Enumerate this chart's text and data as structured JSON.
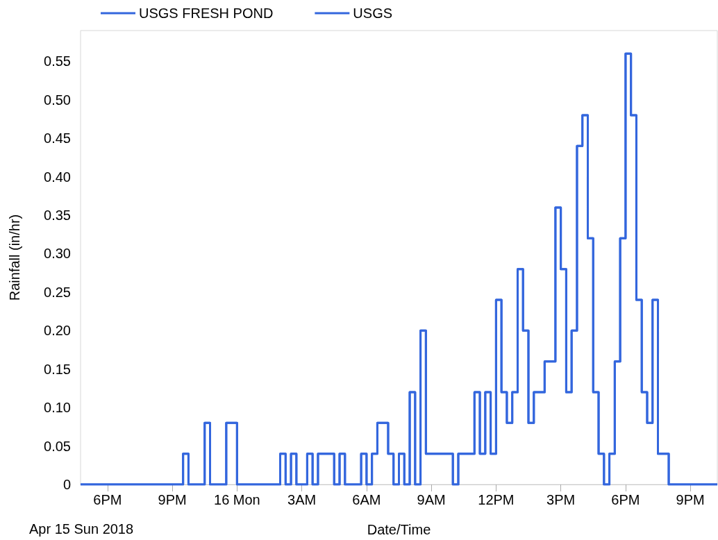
{
  "chart_data": {
    "type": "step",
    "xlabel": "Date/Time",
    "ylabel": "Rainfall (in/hr)",
    "annotations": [
      "Apr 15 Sun 2018"
    ],
    "x": [
      "2018-04-15T16:45",
      "2018-04-15T21:30",
      "2018-04-15T21:45",
      "2018-04-15T22:30",
      "2018-04-15T22:45",
      "2018-04-15T23:30",
      "2018-04-16T00:00",
      "2018-04-16T02:00",
      "2018-04-16T02:15",
      "2018-04-16T02:30",
      "2018-04-16T02:45",
      "2018-04-16T03:15",
      "2018-04-16T03:30",
      "2018-04-16T03:45",
      "2018-04-16T04:30",
      "2018-04-16T04:45",
      "2018-04-16T05:00",
      "2018-04-16T05:45",
      "2018-04-16T06:00",
      "2018-04-16T06:15",
      "2018-04-16T06:30",
      "2018-04-16T07:00",
      "2018-04-16T07:15",
      "2018-04-16T07:30",
      "2018-04-16T07:45",
      "2018-04-16T08:00",
      "2018-04-16T08:15",
      "2018-04-16T08:30",
      "2018-04-16T08:45",
      "2018-04-16T10:00",
      "2018-04-16T10:15",
      "2018-04-16T11:00",
      "2018-04-16T11:15",
      "2018-04-16T11:30",
      "2018-04-16T11:45",
      "2018-04-16T12:00",
      "2018-04-16T12:15",
      "2018-04-16T12:30",
      "2018-04-16T12:45",
      "2018-04-16T13:00",
      "2018-04-16T13:15",
      "2018-04-16T13:30",
      "2018-04-16T13:45",
      "2018-04-16T14:15",
      "2018-04-16T14:45",
      "2018-04-16T15:00",
      "2018-04-16T15:15",
      "2018-04-16T15:30",
      "2018-04-16T15:45",
      "2018-04-16T16:00",
      "2018-04-16T16:15",
      "2018-04-16T16:30",
      "2018-04-16T16:45",
      "2018-04-16T17:00",
      "2018-04-16T17:15",
      "2018-04-16T17:30",
      "2018-04-16T17:45",
      "2018-04-16T18:00",
      "2018-04-16T18:15",
      "2018-04-16T18:30",
      "2018-04-16T18:45",
      "2018-04-16T19:00",
      "2018-04-16T19:15",
      "2018-04-16T19:30",
      "2018-04-16T20:00",
      "2018-04-16T22:15"
    ],
    "series": [
      {
        "name": "USGS FRESH POND",
        "color": "#3366dd",
        "values": [
          0,
          0.04,
          0,
          0.08,
          0,
          0.08,
          0,
          0.04,
          0,
          0.04,
          0,
          0.04,
          0,
          0.04,
          0,
          0.04,
          0,
          0.04,
          0,
          0.04,
          0.08,
          0.04,
          0,
          0.04,
          0,
          0.12,
          0,
          0.2,
          0.04,
          0,
          0.04,
          0.12,
          0.04,
          0.12,
          0.04,
          0.24,
          0.12,
          0.08,
          0.12,
          0.28,
          0.2,
          0.08,
          0.12,
          0.16,
          0.36,
          0.28,
          0.12,
          0.2,
          0.44,
          0.48,
          0.32,
          0.12,
          0.04,
          0,
          0.04,
          0.16,
          0.32,
          0.56,
          0.48,
          0.24,
          0.12,
          0.08,
          0.24,
          0.04,
          0,
          0
        ]
      },
      {
        "name": "USGS",
        "color": "#3366dd",
        "values": [
          0,
          0.04,
          0,
          0.08,
          0,
          0.08,
          0,
          0.04,
          0,
          0.04,
          0,
          0.04,
          0,
          0.04,
          0,
          0.04,
          0,
          0.04,
          0,
          0.04,
          0.08,
          0.04,
          0,
          0.04,
          0,
          0.12,
          0,
          0.2,
          0.04,
          0,
          0.04,
          0.12,
          0.04,
          0.12,
          0.04,
          0.24,
          0.12,
          0.08,
          0.12,
          0.28,
          0.2,
          0.08,
          0.12,
          0.16,
          0.36,
          0.28,
          0.12,
          0.2,
          0.44,
          0.48,
          0.32,
          0.12,
          0.04,
          0,
          0.04,
          0.16,
          0.32,
          0.56,
          0.48,
          0.24,
          0.12,
          0.08,
          0.24,
          0.04,
          0,
          0
        ]
      }
    ],
    "xlim": [
      "2018-04-15T16:45",
      "2018-04-16T22:15"
    ],
    "xticks": [
      {
        "value": "2018-04-15T18:00",
        "label": "6PM"
      },
      {
        "value": "2018-04-15T21:00",
        "label": "9PM"
      },
      {
        "value": "2018-04-16T00:00",
        "label": "16 Mon"
      },
      {
        "value": "2018-04-16T03:00",
        "label": "3AM"
      },
      {
        "value": "2018-04-16T06:00",
        "label": "6AM"
      },
      {
        "value": "2018-04-16T09:00",
        "label": "9AM"
      },
      {
        "value": "2018-04-16T12:00",
        "label": "12PM"
      },
      {
        "value": "2018-04-16T15:00",
        "label": "3PM"
      },
      {
        "value": "2018-04-16T18:00",
        "label": "6PM"
      },
      {
        "value": "2018-04-16T21:00",
        "label": "9PM"
      }
    ],
    "ylim": [
      0,
      0.59
    ],
    "yticks": [
      0,
      {
        "value": 0.05,
        "label": "0.05"
      },
      {
        "value": 0.1,
        "label": "0.10"
      },
      {
        "value": 0.15,
        "label": "0.15"
      },
      {
        "value": 0.2,
        "label": "0.20"
      },
      {
        "value": 0.25,
        "label": "0.25"
      },
      {
        "value": 0.3,
        "label": "0.30"
      },
      {
        "value": 0.35,
        "label": "0.35"
      },
      {
        "value": 0.4,
        "label": "0.40"
      },
      {
        "value": 0.45,
        "label": "0.45"
      },
      {
        "value": 0.5,
        "label": "0.50"
      },
      {
        "value": 0.55,
        "label": "0.55"
      }
    ],
    "legend": "top left",
    "marker": "none",
    "line_style": "solid"
  }
}
